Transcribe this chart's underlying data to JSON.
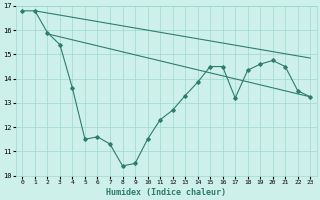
{
  "xlabel": "Humidex (Indice chaleur)",
  "bg_color": "#cef0ea",
  "grid_color": "#9ed8cc",
  "line_color": "#2d7d6e",
  "xlim": [
    -0.5,
    23.5
  ],
  "ylim": [
    10,
    17
  ],
  "yticks": [
    10,
    11,
    12,
    13,
    14,
    15,
    16,
    17
  ],
  "xticks": [
    0,
    1,
    2,
    3,
    4,
    5,
    6,
    7,
    8,
    9,
    10,
    11,
    12,
    13,
    14,
    15,
    16,
    17,
    18,
    19,
    20,
    21,
    22,
    23
  ],
  "series1_x": [
    0,
    1,
    2,
    3,
    4,
    5,
    6,
    7,
    8,
    9,
    10,
    11,
    12,
    13,
    14,
    15,
    16,
    17,
    18,
    19,
    20,
    21,
    22,
    23
  ],
  "series1_y": [
    16.8,
    16.8,
    15.9,
    15.4,
    13.6,
    11.5,
    11.6,
    11.3,
    10.4,
    10.5,
    11.5,
    12.3,
    12.7,
    13.3,
    13.85,
    14.5,
    14.5,
    13.2,
    14.35,
    14.6,
    14.75,
    14.5,
    13.5,
    13.25
  ],
  "series2_x": [
    2,
    23
  ],
  "series2_y": [
    15.85,
    13.25
  ],
  "series3_x": [
    1,
    23
  ],
  "series3_y": [
    16.8,
    14.85
  ]
}
